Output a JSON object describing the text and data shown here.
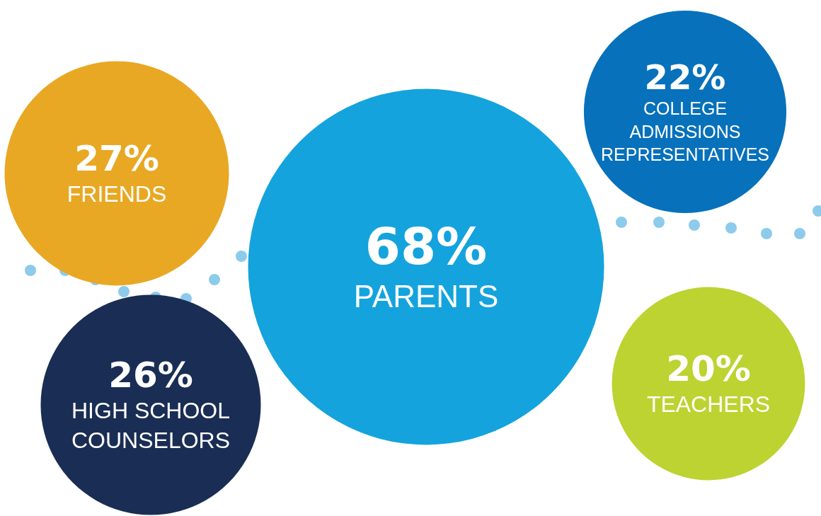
{
  "chart_data": {
    "type": "other",
    "categories": [
      "FRIENDS",
      "HIGH SCHOOL COUNSELORS",
      "PARENTS",
      "COLLEGE ADMISSIONS REPRESENTATIVES",
      "TEACHERS"
    ],
    "values": [
      27,
      26,
      68,
      22,
      20
    ],
    "value_labels": [
      "27%",
      "26%",
      "68%",
      "22%",
      "20%"
    ],
    "colors": [
      "#e8a823",
      "#1a2d54",
      "#14a3dc",
      "#0771bb",
      "#bcd331"
    ]
  }
}
